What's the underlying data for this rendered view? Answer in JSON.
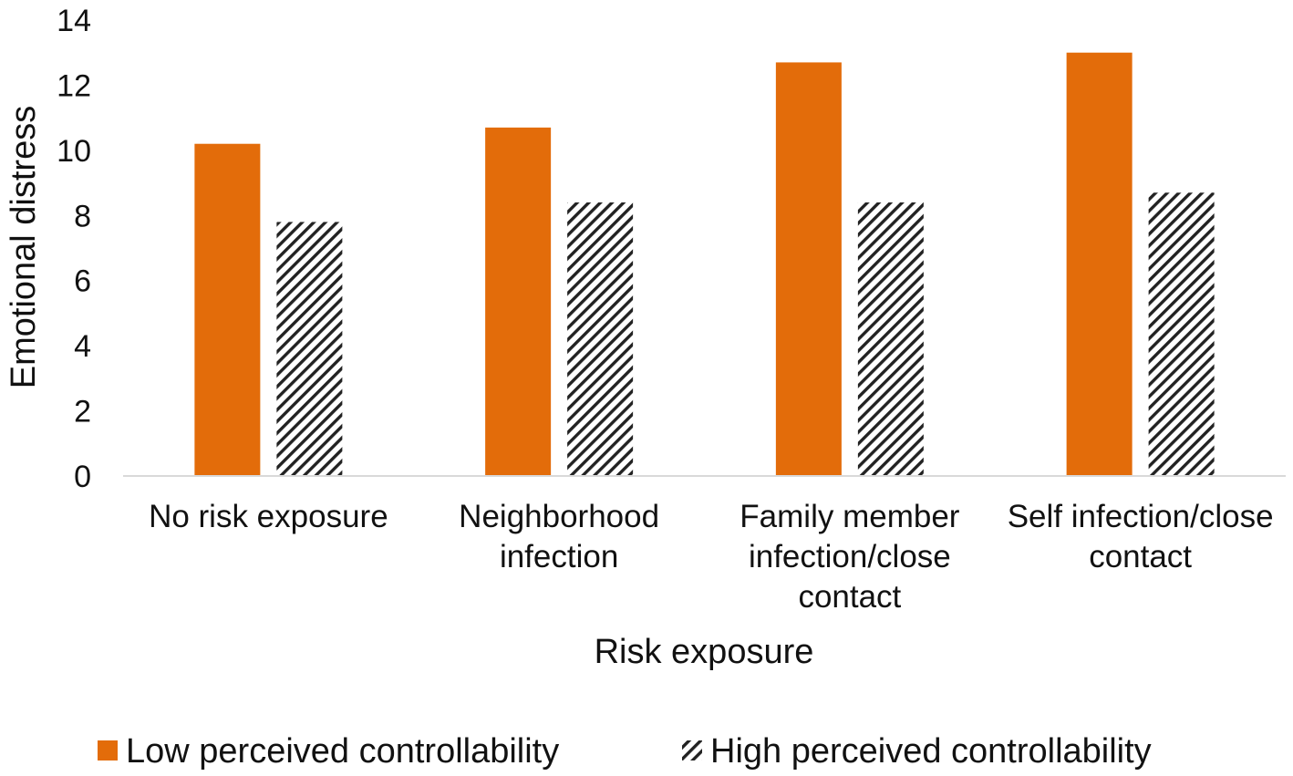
{
  "chart_data": {
    "type": "bar",
    "title": "",
    "xlabel": "Risk exposure",
    "ylabel": "Emotional distress",
    "ylim": [
      0,
      14
    ],
    "yticks": [
      0,
      2,
      4,
      6,
      8,
      10,
      12,
      14
    ],
    "grid": false,
    "legend_position": "bottom",
    "categories": [
      [
        "No risk exposure"
      ],
      [
        "Neighborhood",
        "infection"
      ],
      [
        "Family member",
        "infection/close",
        "contact"
      ],
      [
        "Self infection/close",
        "contact"
      ]
    ],
    "series": [
      {
        "name": "Low perceived controllability",
        "color": "#E36C0A",
        "pattern": "solid",
        "values": [
          10.2,
          10.7,
          12.7,
          13.0
        ]
      },
      {
        "name": "High perceived controllability",
        "color": "#222222",
        "pattern": "diagonal-hatch",
        "values": [
          7.8,
          8.4,
          8.4,
          8.7
        ]
      }
    ]
  }
}
